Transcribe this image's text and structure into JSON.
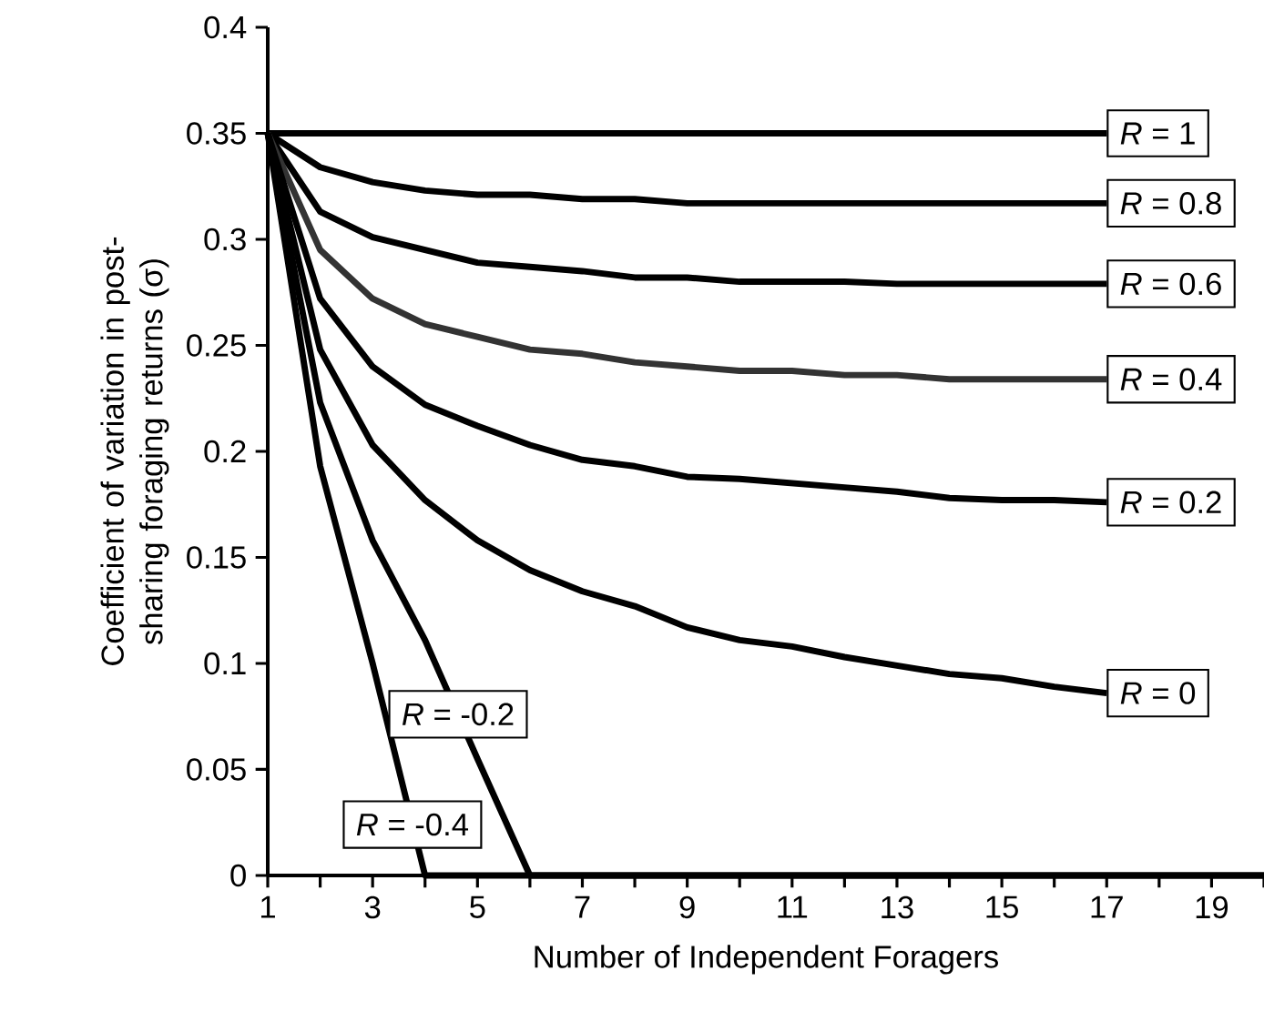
{
  "chart_data": {
    "type": "line",
    "xlabel": "Number of Independent Foragers",
    "ylabel": "Coefficient of variation in post-sharing foraging returns (σ)",
    "x": [
      1,
      2,
      3,
      4,
      5,
      6,
      7,
      8,
      9,
      10,
      11,
      12,
      13,
      14,
      15,
      16,
      17,
      18,
      19,
      20
    ],
    "series": [
      {
        "color": "#000000",
        "values": [
          0.35,
          0.35,
          0.35,
          0.35,
          0.35,
          0.35,
          0.35,
          0.35,
          0.35,
          0.35,
          0.35,
          0.35,
          0.35,
          0.35,
          0.35,
          0.35,
          0.35,
          null,
          null,
          null
        ]
      },
      {
        "color": "#000000",
        "values": [
          0.35,
          0.334,
          0.327,
          0.323,
          0.321,
          0.321,
          0.319,
          0.319,
          0.317,
          0.317,
          0.317,
          0.317,
          0.317,
          0.317,
          0.317,
          0.317,
          0.317,
          null,
          null,
          null
        ]
      },
      {
        "color": "#000000",
        "values": [
          0.35,
          0.313,
          0.301,
          0.295,
          0.289,
          0.287,
          0.285,
          0.282,
          0.282,
          0.28,
          0.28,
          0.28,
          0.279,
          0.279,
          0.279,
          0.279,
          0.279,
          null,
          null,
          null
        ]
      },
      {
        "color": "#333333",
        "values": [
          0.35,
          0.295,
          0.272,
          0.26,
          0.254,
          0.248,
          0.246,
          0.242,
          0.24,
          0.238,
          0.238,
          0.236,
          0.236,
          0.234,
          0.234,
          0.234,
          0.234,
          null,
          null,
          null
        ]
      },
      {
        "color": "#000000",
        "values": [
          0.35,
          0.272,
          0.24,
          0.222,
          0.212,
          0.203,
          0.196,
          0.193,
          0.188,
          0.187,
          0.185,
          0.183,
          0.181,
          0.178,
          0.177,
          0.177,
          0.176,
          null,
          null,
          null
        ]
      },
      {
        "color": "#000000",
        "values": [
          0.35,
          0.248,
          0.203,
          0.177,
          0.158,
          0.144,
          0.134,
          0.127,
          0.117,
          0.111,
          0.108,
          0.103,
          0.099,
          0.095,
          0.093,
          0.089,
          0.086,
          null,
          null,
          null
        ]
      },
      {
        "color": "#000000",
        "values": [
          0.35,
          0.223,
          0.158,
          0.111,
          0.055,
          0,
          0,
          0,
          0,
          0,
          0,
          0,
          0,
          0,
          0,
          0,
          0,
          0,
          0,
          0
        ]
      },
      {
        "color": "#000000",
        "values": [
          0.35,
          0.193,
          0.1,
          0,
          0,
          0,
          0,
          0,
          0,
          0,
          0,
          0,
          0,
          0,
          0,
          0,
          0,
          0,
          0,
          0
        ]
      }
    ],
    "annotations": [
      {
        "text": "*R* = 1",
        "x": 17,
        "y": 0.35
      },
      {
        "text": "*R* = 0.8",
        "x": 17,
        "y": 0.317
      },
      {
        "text": "*R* = 0.6",
        "x": 17,
        "y": 0.279
      },
      {
        "text": "*R* = 0.4",
        "x": 17,
        "y": 0.234
      },
      {
        "text": "*R* = 0.2",
        "x": 17,
        "y": 0.176
      },
      {
        "text": "*R* = 0",
        "x": 17,
        "y": 0.086
      },
      {
        "text": "*R* = -0.2",
        "x": 4.63,
        "y": 0.076
      },
      {
        "text": "*R* = -0.4",
        "x": 3.76,
        "y": 0.024
      }
    ],
    "xlim": [
      1,
      20
    ],
    "ylim": [
      0,
      0.4
    ],
    "xticks": [
      1,
      {
        "value": 2,
        "label": null
      },
      3,
      {
        "value": 4,
        "label": null
      },
      5,
      {
        "value": 6,
        "label": null
      },
      7,
      {
        "value": 8,
        "label": null
      },
      9,
      {
        "value": 10,
        "label": null
      },
      11,
      {
        "value": 12,
        "label": null
      },
      13,
      {
        "value": 14,
        "label": null
      },
      15,
      {
        "value": 16,
        "label": null
      },
      17,
      {
        "value": 18,
        "label": null
      },
      19,
      {
        "value": 20,
        "label": null
      }
    ],
    "yticks": [
      0,
      0.05,
      0.1,
      0.15,
      0.2,
      0.25,
      0.3,
      0.35,
      0.4
    ],
    "grid": false,
    "marker": "none",
    "line_style": "solid"
  }
}
